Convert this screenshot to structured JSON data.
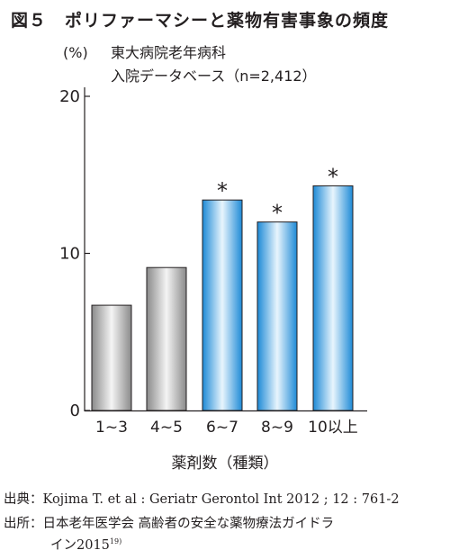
{
  "figure": {
    "title": "図５　ポリファーマシーと薬物有害事象の頻度"
  },
  "chart_data": {
    "type": "bar",
    "ylabel": "(%)",
    "xlabel": "薬剤数（種類）",
    "annotation_lines": [
      "東大病院老年病科",
      "入院データベース（n=2,412）"
    ],
    "categories": [
      "1~3",
      "4~5",
      "6~7",
      "8~9",
      "10以上"
    ],
    "values": [
      6.7,
      9.1,
      13.4,
      12.0,
      14.3
    ],
    "significance": [
      "",
      "",
      "*",
      "*",
      "*"
    ],
    "ylim": [
      0,
      20
    ],
    "yticks": [
      0,
      10,
      20
    ],
    "grid": false,
    "bar_colors": [
      "#8a8a8a",
      "#8a8a8a",
      "#1e8ad6",
      "#1e8ad6",
      "#1e8ad6"
    ]
  },
  "sources": {
    "line1_label": "出典",
    "line1_text": "Kojima T. et al : Geriatr Gerontol Int 2012 ; 12 : 761-2",
    "line2_label": "出所",
    "line2_text": "日本老年医学会 高齢者の安全な薬物療法ガイドラ",
    "line3_text": "イン2015",
    "line3_ref": "19)"
  }
}
